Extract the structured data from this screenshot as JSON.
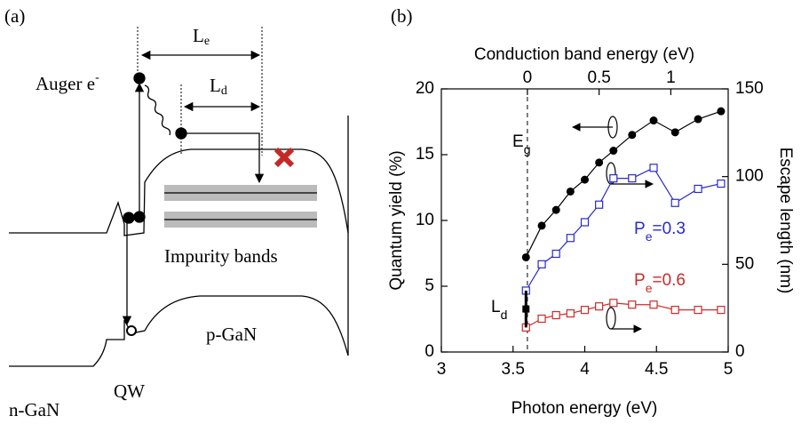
{
  "diagram": {
    "panel_label": "(a)",
    "le": {
      "text": "L",
      "sub": "e"
    },
    "ld": {
      "text": "L",
      "sub": "d"
    },
    "auger": {
      "text": "Auger e",
      "sup": "-"
    },
    "impurity": "Impurity bands",
    "pgan": "p-GaN",
    "ngan": "n-GaN",
    "qw": "QW"
  },
  "chart_data": {
    "type": "line",
    "panel_label": "(b)",
    "x_label": "Photon energy (eV)",
    "y_label": "Quantum yield (%)",
    "y2_label": "Escape length (nm)",
    "x2_label": "Conduction band energy (eV)",
    "xlim": [
      3,
      5
    ],
    "xticks": [
      3,
      3.5,
      4,
      4.5,
      5
    ],
    "ylim": [
      0,
      20
    ],
    "yticks": [
      0,
      5,
      10,
      15,
      20
    ],
    "y2lim": [
      0,
      150
    ],
    "y2ticks": [
      0,
      50,
      100,
      150
    ],
    "x2lim": [
      -0.6,
      1.4
    ],
    "x2ticks": [
      0,
      0.5,
      1
    ],
    "x": [
      3.59,
      3.7,
      3.8,
      3.9,
      4.0,
      4.1,
      4.2,
      4.33,
      4.48,
      4.63,
      4.79,
      4.95
    ],
    "series": [
      {
        "name": "Quantum yield",
        "color": "#000000",
        "marker": "circle",
        "axis": "y",
        "values": [
          7.2,
          9.6,
          10.8,
          12.2,
          13.1,
          14.4,
          15.3,
          16.5,
          17.6,
          16.7,
          17.7,
          18.3
        ]
      },
      {
        "name": "Pe=0.3",
        "color": "#2a2acc",
        "marker": "square",
        "axis": "y2",
        "values": [
          35,
          50,
          56,
          65,
          74,
          84,
          99,
          99,
          105,
          85,
          93,
          96
        ]
      },
      {
        "name": "Pe=0.6",
        "color": "#cc2a2a",
        "marker": "square",
        "axis": "y2",
        "values": [
          14,
          19,
          21,
          22,
          24,
          26,
          28,
          27,
          27,
          24,
          24,
          24
        ]
      }
    ],
    "annotations": [
      {
        "text": "E",
        "sub": "g",
        "color": "#000000"
      },
      {
        "text": "P",
        "sub": "e",
        "tail": "=0.3",
        "color": "#2a2acc"
      },
      {
        "text": "P",
        "sub": "e",
        "tail": "=0.6",
        "color": "#cc2a2a"
      },
      {
        "text": "L",
        "sub": "d",
        "color": "#000000"
      }
    ]
  }
}
